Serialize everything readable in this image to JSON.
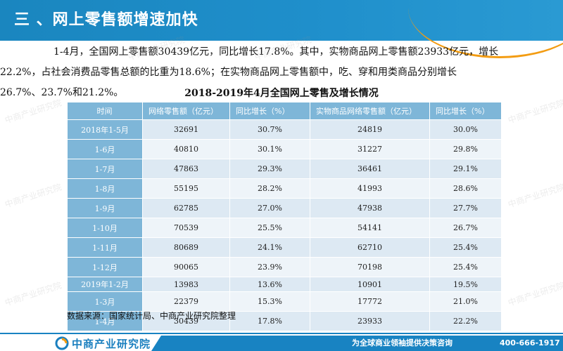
{
  "header": {
    "title": "三 、网上零售额增速加快"
  },
  "paragraph": [
    "1-4月，全国网上零售额30439亿元，同比增长17.8%。其中，实物商品网上零售额23933亿元，增长",
    "22.2%，占社会消费品零售总额的比重为18.6%；在实物商品网上零售额中，吃、穿和用类商品分别增长",
    "26.7%、23.7%和21.2%。"
  ],
  "table": {
    "title": "2018-2019年4月全国网上零售及增长情况",
    "headers": [
      "时间",
      "网络零售额（亿元）",
      "同比增长（%）",
      "实物商品网络零售额（亿元）",
      "同比增长（%）"
    ],
    "rows": [
      [
        "2018年1-5月",
        "32691",
        "30.7%",
        "24819",
        "30.0%"
      ],
      [
        "1-6月",
        "40810",
        "30.1%",
        "31227",
        "29.8%"
      ],
      [
        "1-7月",
        "47863",
        "29.3%",
        "36461",
        "29.1%"
      ],
      [
        "1-8月",
        "55195",
        "28.2%",
        "41993",
        "28.6%"
      ],
      [
        "1-9月",
        "62785",
        "27.0%",
        "47938",
        "27.7%"
      ],
      [
        "1-10月",
        "70539",
        "25.5%",
        "54141",
        "26.7%"
      ],
      [
        "1-11月",
        "80689",
        "24.1%",
        "62710",
        "25.4%"
      ],
      [
        "1-12月",
        "90065",
        "23.9%",
        "70198",
        "25.4%"
      ],
      [
        "2019年1-2月",
        "13983",
        "13.6%",
        "10901",
        "19.5%"
      ],
      [
        "1-3月",
        "22379",
        "15.3%",
        "17772",
        "21.0%"
      ],
      [
        "1-4月",
        "30439",
        "17.8%",
        "23933",
        "22.2%"
      ]
    ]
  },
  "source": "数据来源：国家统计局、中商产业研究院整理",
  "footer": {
    "logo_text": "中商产业研究院",
    "slogan": "为全球商业领袖提供决策咨询",
    "phone": "400-666-1917"
  },
  "watermark_text": "中商产业研究院",
  "colors": {
    "header_blue": "#1a86bf",
    "table_header": "#7eb6d8",
    "row_light": "#dde9f3",
    "footer_blue": "#1883c2",
    "accent_orange": "#f39c12"
  }
}
